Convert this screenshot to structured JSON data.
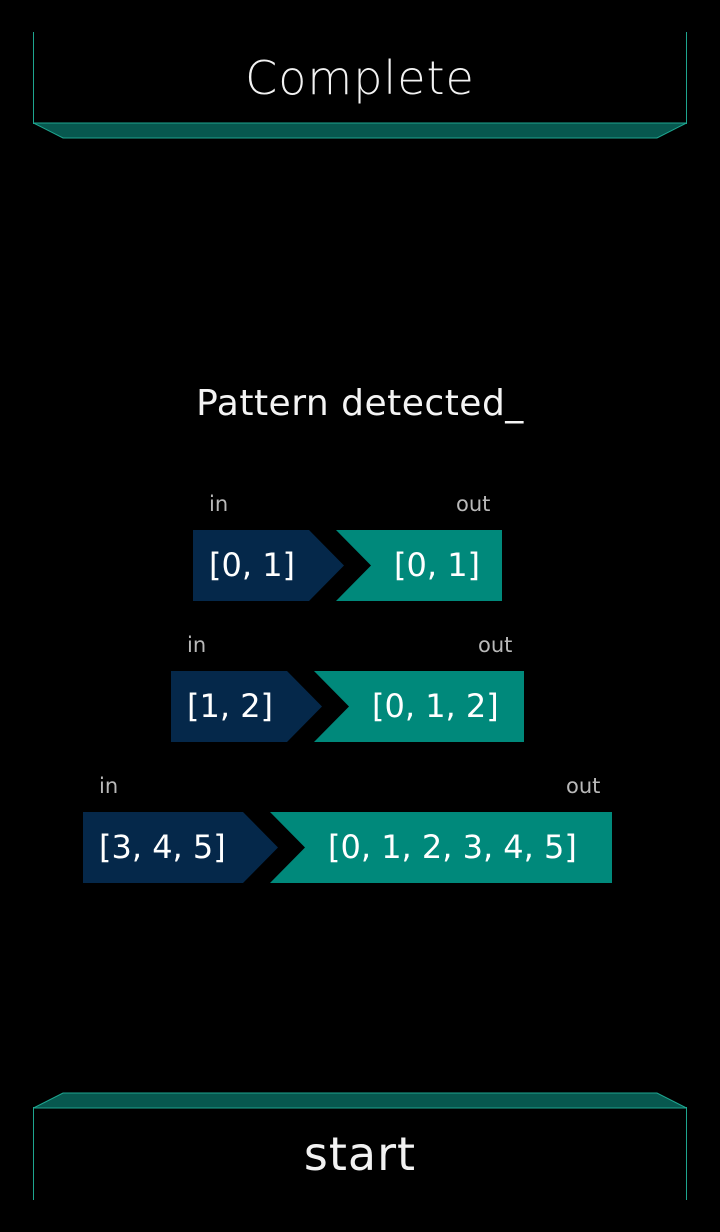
{
  "header": {
    "title": "Complete"
  },
  "message": "Pattern detected_",
  "labels": {
    "in": "in",
    "out": "out"
  },
  "examples": [
    {
      "input": "[0, 1]",
      "output": "[0, 1]"
    },
    {
      "input": "[1, 2]",
      "output": "[0, 1, 2]"
    },
    {
      "input": "[3, 4, 5]",
      "output": "[0, 1, 2, 3, 4, 5]"
    }
  ],
  "footer": {
    "button_label": "start"
  },
  "colors": {
    "input_bg": "#05284a",
    "output_bg": "#00897b",
    "accent_line": "#1ea58f",
    "bevel_fill": "#07584f"
  }
}
